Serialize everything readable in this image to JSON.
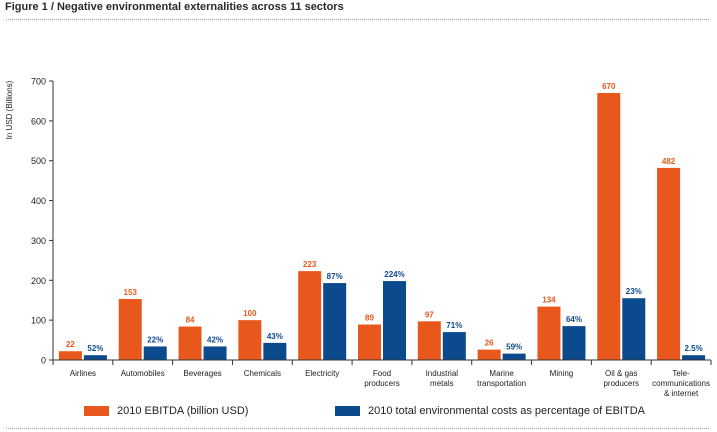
{
  "figure_title": "Figure 1 / Negative environmental externalities across 11 sectors",
  "colors": {
    "ebitda": "#e8581c",
    "env": "#0c4a8e",
    "axis": "#333333",
    "text": "#222222"
  },
  "legend": {
    "ebitda": "2010 EBITDA (billion USD)",
    "env": "2010 total environmental costs as percentage of EBITDA"
  },
  "chart_data": {
    "type": "bar",
    "title": "",
    "ylabel": "In USD (Billions)",
    "xlabel": "",
    "ylim": [
      0,
      700
    ],
    "yticks": [
      0,
      100,
      200,
      300,
      400,
      500,
      600,
      700
    ],
    "categories": [
      [
        "Airlines"
      ],
      [
        "Automobiles"
      ],
      [
        "Beverages"
      ],
      [
        "Chemicals"
      ],
      [
        "Electricity"
      ],
      [
        "Food",
        "producers"
      ],
      [
        "Industrial",
        "metals"
      ],
      [
        "Marine",
        "transportation"
      ],
      [
        "Mining"
      ],
      [
        "Oil & gas",
        "producers"
      ],
      [
        "Tele-",
        "communications",
        "& internet"
      ]
    ],
    "series": [
      {
        "name": "2010 EBITDA (billion USD)",
        "values": [
          22,
          153,
          84,
          100,
          223,
          89,
          97,
          26,
          134,
          670,
          482
        ],
        "labels": [
          "22",
          "153",
          "84",
          "100",
          "223",
          "89",
          "97",
          "26",
          "134",
          "670",
          "482"
        ]
      },
      {
        "name": "2010 total environmental costs as percentage of EBITDA",
        "values": [
          12,
          34,
          34,
          43,
          193,
          198,
          70,
          16,
          85,
          155,
          12
        ],
        "labels": [
          "52%",
          "22%",
          "42%",
          "43%",
          "87%",
          "224%",
          "71%",
          "59%",
          "64%",
          "23%",
          "2.5%"
        ]
      }
    ]
  }
}
